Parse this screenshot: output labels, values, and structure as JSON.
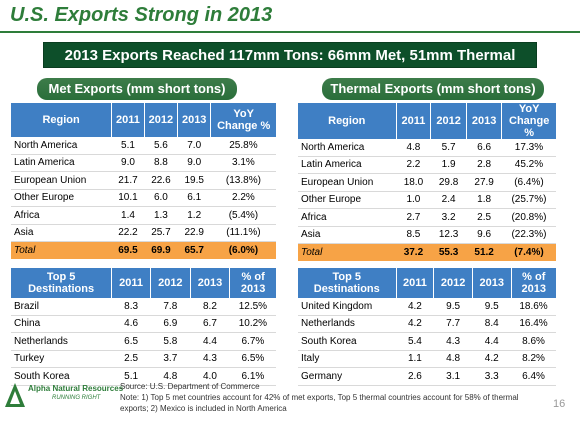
{
  "title": "U.S. Exports Strong in 2013",
  "banner": "2013 Exports Reached 117mm Tons: 66mm Met, 51mm Thermal",
  "met": {
    "heading": "Met Exports (mm short tons)",
    "headers": [
      "Region",
      "2011",
      "2012",
      "2013",
      "YoY\nChange %"
    ],
    "rows": [
      [
        "North America",
        "5.1",
        "5.6",
        "7.0",
        "25.8%"
      ],
      [
        "Latin America",
        "9.0",
        "8.8",
        "9.0",
        "3.1%"
      ],
      [
        "European Union",
        "21.7",
        "22.6",
        "19.5",
        "(13.8%)"
      ],
      [
        "Other Europe",
        "10.1",
        "6.0",
        "6.1",
        "2.2%"
      ],
      [
        "Africa",
        "1.4",
        "1.3",
        "1.2",
        "(5.4%)"
      ],
      [
        "Asia",
        "22.2",
        "25.7",
        "22.9",
        "(11.1%)"
      ]
    ],
    "total": [
      "Total",
      "69.5",
      "69.9",
      "65.7",
      "(6.0%)"
    ],
    "dest_headers": [
      "Top 5\nDestinations",
      "2011",
      "2012",
      "2013",
      "% of\n2013"
    ],
    "dest_rows": [
      [
        "Brazil",
        "8.3",
        "7.8",
        "8.2",
        "12.5%"
      ],
      [
        "China",
        "4.6",
        "6.9",
        "6.7",
        "10.2%"
      ],
      [
        "Netherlands",
        "6.5",
        "5.8",
        "4.4",
        "6.7%"
      ],
      [
        "Turkey",
        "2.5",
        "3.7",
        "4.3",
        "6.5%"
      ],
      [
        "South Korea",
        "5.1",
        "4.8",
        "4.0",
        "6.1%"
      ]
    ]
  },
  "thermal": {
    "heading": "Thermal Exports (mm short tons)",
    "headers": [
      "Region",
      "2011",
      "2012",
      "2013",
      "YoY\nChange\n%"
    ],
    "rows": [
      [
        "North America",
        "4.8",
        "5.7",
        "6.6",
        "17.3%"
      ],
      [
        "Latin America",
        "2.2",
        "1.9",
        "2.8",
        "45.2%"
      ],
      [
        "European Union",
        "18.0",
        "29.8",
        "27.9",
        "(6.4%)"
      ],
      [
        "Other Europe",
        "1.0",
        "2.4",
        "1.8",
        "(25.7%)"
      ],
      [
        "Africa",
        "2.7",
        "3.2",
        "2.5",
        "(20.8%)"
      ],
      [
        "Asia",
        "8.5",
        "12.3",
        "9.6",
        "(22.3%)"
      ]
    ],
    "total": [
      "Total",
      "37.2",
      "55.3",
      "51.2",
      "(7.4%)"
    ],
    "dest_headers": [
      "Top 5\nDestinations",
      "2011",
      "2012",
      "2013",
      "% of\n2013"
    ],
    "dest_rows": [
      [
        "United Kingdom",
        "4.2",
        "9.5",
        "9.5",
        "18.6%"
      ],
      [
        "Netherlands",
        "4.2",
        "7.7",
        "8.4",
        "16.4%"
      ],
      [
        "South Korea",
        "5.4",
        "4.3",
        "4.4",
        "8.6%"
      ],
      [
        "Italy",
        "1.1",
        "4.8",
        "4.2",
        "8.2%"
      ],
      [
        "Germany",
        "2.6",
        "3.1",
        "3.3",
        "6.4%"
      ]
    ]
  },
  "footer": {
    "source": "Source: U.S. Department of Commerce",
    "note": "Note: 1) Top 5 met countries account for 42% of met exports, Top 5 thermal countries account for 58% of thermal exports; 2) Mexico is included in North America"
  },
  "logo": {
    "name": "Alpha Natural Resources",
    "tagline": "RUNNING RIGHT",
    "icon": "alpha-triangle-logo"
  },
  "page_number": "16",
  "colors": {
    "title_green": "#2e7d3a",
    "banner_green": "#0d4f2a",
    "header_blue": "#3f7fc4",
    "total_orange": "#f7a346"
  }
}
